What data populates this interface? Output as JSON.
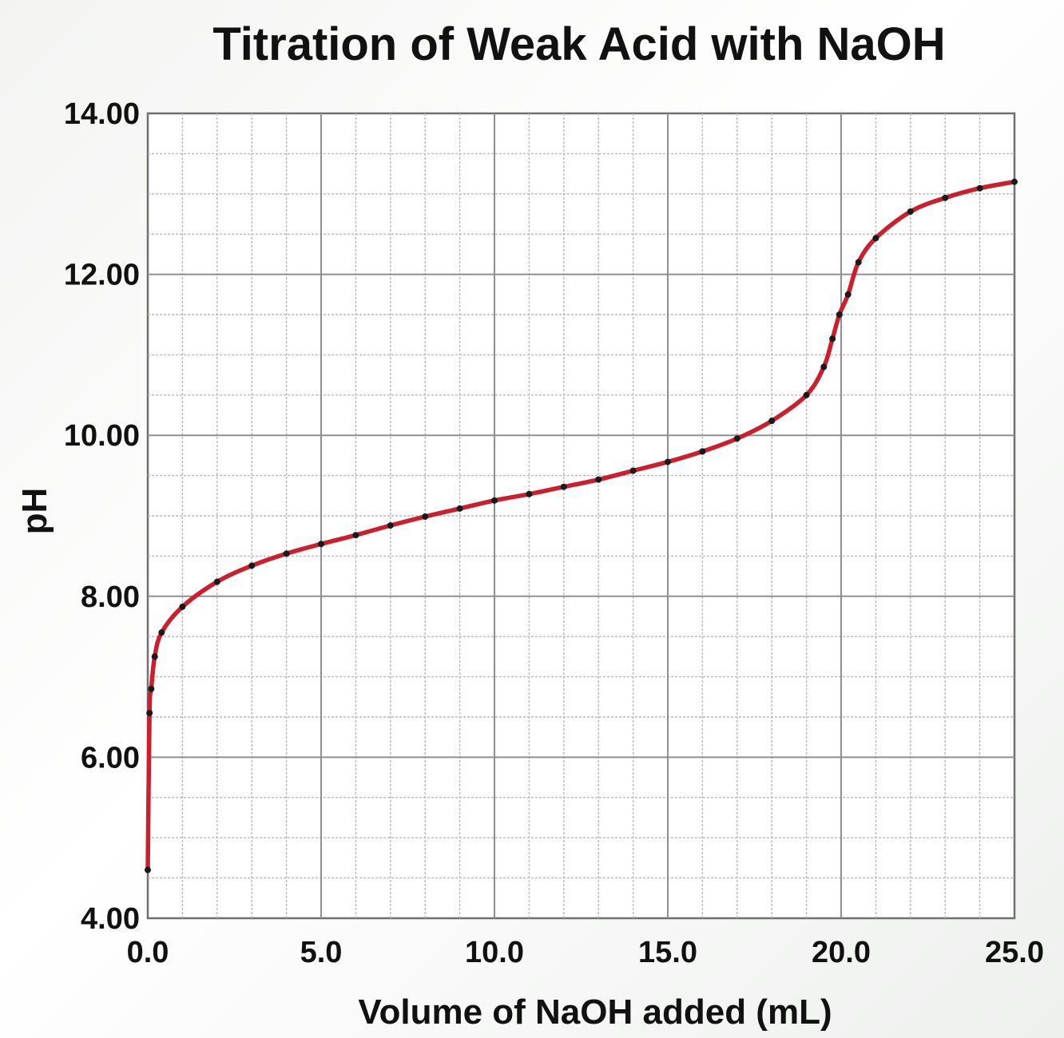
{
  "chart_data": {
    "type": "line",
    "title": "Titration of Weak Acid with NaOH",
    "xlabel": "Volume of NaOH added (mL)",
    "ylabel": "pH",
    "xlim": [
      0,
      25
    ],
    "ylim": [
      4,
      14
    ],
    "x_ticks": [
      0,
      5,
      10,
      15,
      20,
      25
    ],
    "x_tick_labels": [
      "0.0",
      "5.0",
      "10.0",
      "15.0",
      "20.0",
      "25.0"
    ],
    "y_ticks": [
      4,
      6,
      8,
      10,
      12,
      14
    ],
    "y_tick_labels": [
      "4.00",
      "6.00",
      "8.00",
      "10.00",
      "12.00",
      "14.00"
    ],
    "grid": true,
    "series": [
      {
        "color": "#cc1f2e",
        "marker_color": "#1a1a1a",
        "points": [
          [
            0.0,
            4.6
          ],
          [
            0.05,
            6.55
          ],
          [
            0.1,
            6.85
          ],
          [
            0.2,
            7.25
          ],
          [
            0.4,
            7.55
          ],
          [
            1.0,
            7.87
          ],
          [
            2.0,
            8.18
          ],
          [
            3.0,
            8.38
          ],
          [
            4.0,
            8.53
          ],
          [
            5.0,
            8.65
          ],
          [
            6.0,
            8.76
          ],
          [
            7.0,
            8.88
          ],
          [
            8.0,
            8.99
          ],
          [
            9.0,
            9.09
          ],
          [
            10.0,
            9.19
          ],
          [
            11.0,
            9.27
          ],
          [
            12.0,
            9.36
          ],
          [
            13.0,
            9.45
          ],
          [
            14.0,
            9.56
          ],
          [
            15.0,
            9.67
          ],
          [
            16.0,
            9.8
          ],
          [
            17.0,
            9.96
          ],
          [
            18.0,
            10.18
          ],
          [
            19.0,
            10.5
          ],
          [
            19.5,
            10.85
          ],
          [
            19.75,
            11.2
          ],
          [
            19.95,
            11.5
          ],
          [
            20.2,
            11.75
          ],
          [
            20.5,
            12.15
          ],
          [
            21.0,
            12.45
          ],
          [
            22.0,
            12.78
          ],
          [
            23.0,
            12.95
          ],
          [
            24.0,
            13.07
          ],
          [
            25.0,
            13.15
          ]
        ]
      }
    ]
  }
}
